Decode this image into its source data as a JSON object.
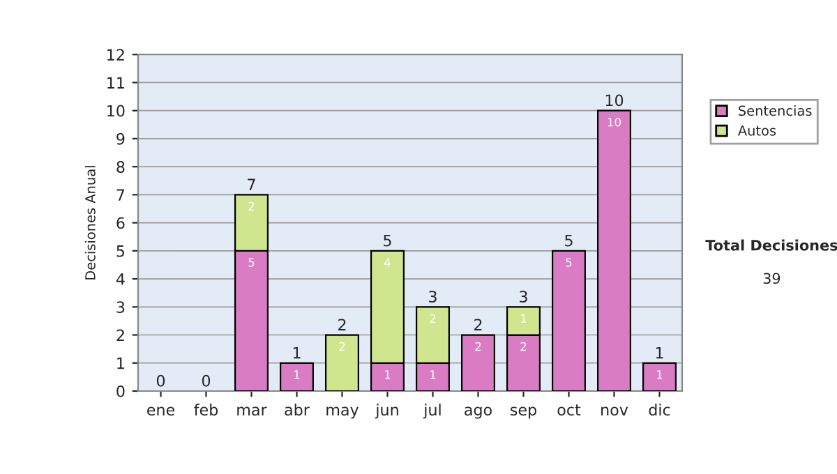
{
  "chart_data": {
    "type": "bar",
    "stacked": true,
    "ylabel": "Decisiones Anual",
    "categories": [
      "ene",
      "feb",
      "mar",
      "abr",
      "may",
      "jun",
      "jul",
      "ago",
      "sep",
      "oct",
      "nov",
      "dic"
    ],
    "series": [
      {
        "name": "Sentencias",
        "color": "#d97cc4",
        "values": [
          0,
          0,
          5,
          1,
          0,
          1,
          1,
          2,
          2,
          5,
          10,
          1
        ],
        "value_labels": [
          null,
          null,
          "5",
          "1",
          null,
          "1",
          "1",
          "2",
          "2",
          "5",
          "10",
          "1"
        ]
      },
      {
        "name": "Autos",
        "color": "#cfe68e",
        "values": [
          0,
          0,
          2,
          0,
          2,
          4,
          2,
          0,
          1,
          0,
          0,
          0
        ],
        "value_labels": [
          null,
          null,
          "2",
          null,
          "2",
          "4",
          "2",
          null,
          "1",
          null,
          null,
          null
        ]
      }
    ],
    "totals": [
      "0",
      "0",
      "7",
      "1",
      "2",
      "5",
      "3",
      "2",
      "3",
      "5",
      "10",
      "1"
    ],
    "ylim": [
      0,
      12
    ],
    "yticks": [
      0,
      1,
      2,
      3,
      4,
      5,
      6,
      7,
      8,
      9,
      10,
      11,
      12
    ],
    "grid": "y",
    "legend": "right",
    "annotations": [
      "Total Decisiones",
      "39"
    ]
  }
}
